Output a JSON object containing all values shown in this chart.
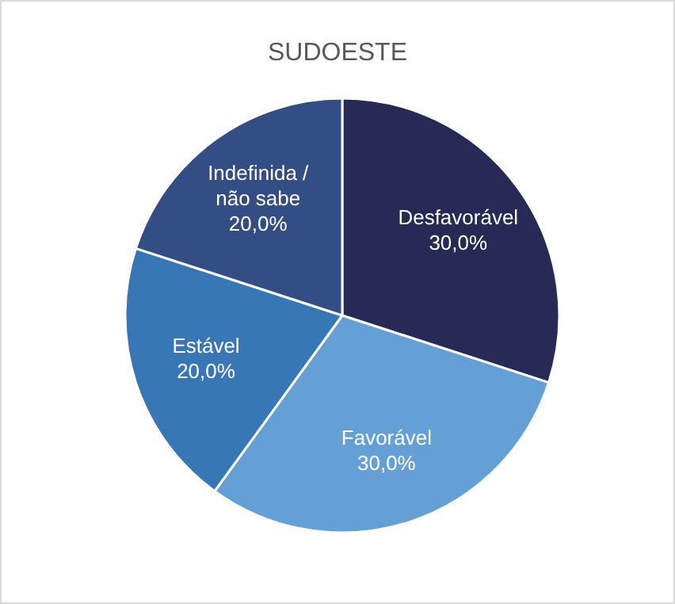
{
  "chart_data": {
    "type": "pie",
    "title": "SUDOESTE",
    "categories": [
      "Desfavorável",
      "Favorável",
      "Estável",
      "Indefinida / não sabe"
    ],
    "values": [
      30,
      30,
      20,
      20
    ],
    "colors": [
      "#262a55",
      "#64a0d6",
      "#3877b5",
      "#334d85"
    ],
    "value_labels": [
      "30,0%",
      "30,0%",
      "20,0%",
      "20,0%"
    ]
  }
}
